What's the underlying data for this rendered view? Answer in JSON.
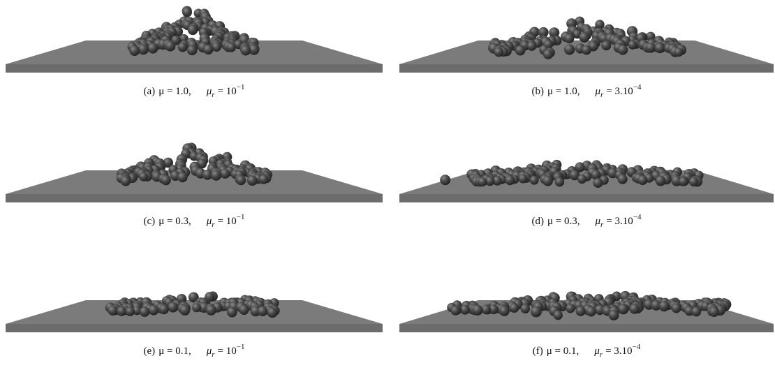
{
  "figure": {
    "panels": [
      {
        "label": "(a)",
        "mu": "μ = 1.0,",
        "mur_symbol": "μ",
        "mur_sub": "r",
        "mur_value": "= 10",
        "mur_exp": "−1"
      },
      {
        "label": "(b)",
        "mu": "μ = 1.0,",
        "mur_symbol": "μ",
        "mur_sub": "r",
        "mur_value": "= 3.10",
        "mur_exp": "−4"
      },
      {
        "label": "(c)",
        "mu": "μ = 0.3,",
        "mur_symbol": "μ",
        "mur_sub": "r",
        "mur_value": "= 10",
        "mur_exp": "−1"
      },
      {
        "label": "(d)",
        "mu": "μ = 0.3,",
        "mur_symbol": "μ",
        "mur_sub": "r",
        "mur_value": "= 3.10",
        "mur_exp": "−4"
      },
      {
        "label": "(e)",
        "mu": "μ = 0.1,",
        "mur_symbol": "μ",
        "mur_sub": "r",
        "mur_value": "= 10",
        "mur_exp": "−1"
      },
      {
        "label": "(f)",
        "mu": "μ = 0.1,",
        "mur_symbol": "μ",
        "mur_sub": "r",
        "mur_value": "= 3.10",
        "mur_exp": "−4"
      }
    ]
  }
}
